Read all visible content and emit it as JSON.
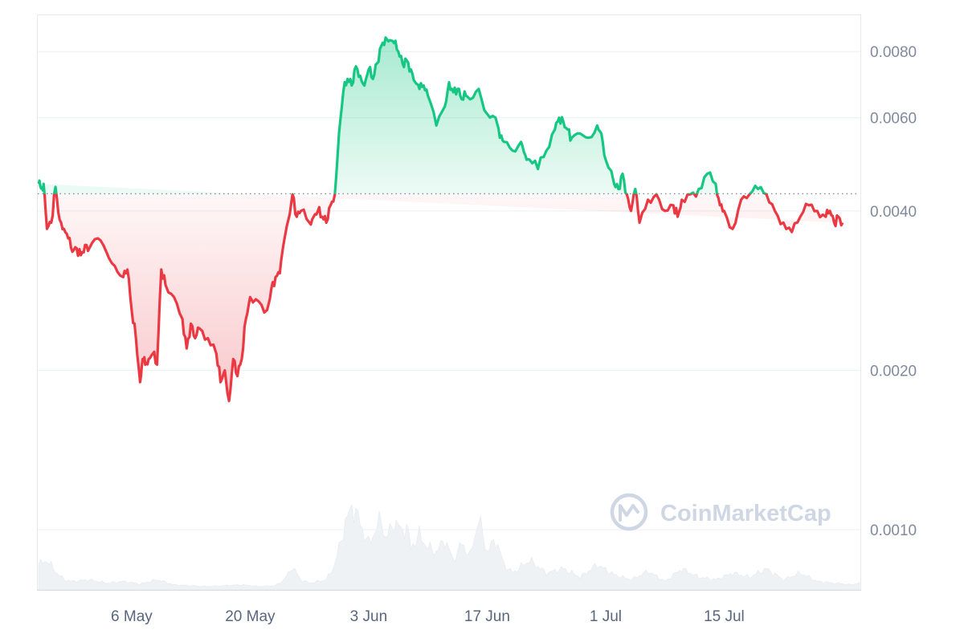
{
  "chart_data": {
    "type": "area",
    "y_scale": "log",
    "ylim": [
      0.00077,
      0.0094
    ],
    "baseline": 0.00431,
    "colors": {
      "above": "#16c784",
      "below": "#ea3943",
      "grid": "#eff2f5",
      "baseline": "#808a9d",
      "volume": "#eff2f5"
    },
    "y_ticks": [
      {
        "label": "0.0080",
        "value": 0.008
      },
      {
        "label": "0.0060",
        "value": 0.006
      },
      {
        "label": "0.0040",
        "value": 0.004
      },
      {
        "label": "0.0020",
        "value": 0.002
      },
      {
        "label": "0.0010",
        "value": 0.001
      }
    ],
    "x_ticks": [
      {
        "label": "6 May",
        "day": 11
      },
      {
        "label": "20 May",
        "day": 25
      },
      {
        "label": "3 Jun",
        "day": 39
      },
      {
        "label": "17 Jun",
        "day": 53
      },
      {
        "label": "1 Jul",
        "day": 67
      },
      {
        "label": "15 Jul",
        "day": 81
      }
    ],
    "x_range": [
      0,
      97
    ],
    "price": {
      "day": [
        0,
        0.3,
        0.6,
        1,
        1.5,
        2,
        2.5,
        3,
        3.5,
        4,
        4.5,
        5,
        5.5,
        6,
        7,
        8,
        9,
        10,
        10.5,
        11,
        11.5,
        12,
        12.3,
        12.6,
        13,
        13.5,
        14,
        14.5,
        15,
        16,
        17,
        17.5,
        18,
        18.5,
        19,
        20,
        21,
        21.5,
        22,
        22.5,
        23,
        23.5,
        24,
        24.5,
        25,
        26,
        27,
        27.5,
        28,
        28.5,
        29,
        30,
        30.5,
        31,
        32,
        32.5,
        33,
        33.5,
        34,
        34.5,
        35,
        35.5,
        36,
        36.5,
        37,
        37.5,
        38,
        38.5,
        39,
        39.5,
        40,
        40.5,
        41,
        41.5,
        42,
        42.5,
        43,
        43.5,
        44,
        44.5,
        45,
        45.5,
        46,
        47,
        48,
        48.5,
        49,
        49.5,
        50,
        50.5,
        51,
        52,
        53,
        54,
        54.5,
        55,
        56,
        57,
        57.5,
        58,
        59,
        60,
        61,
        61.5,
        62,
        62.5,
        63,
        64,
        65,
        66,
        66.5,
        67,
        68,
        68.5,
        69,
        69.5,
        70,
        70.5,
        71,
        72,
        73,
        74,
        75,
        75.5,
        76,
        77,
        78,
        79,
        80,
        80.5,
        81,
        82,
        83,
        84,
        85,
        86,
        87,
        88,
        89,
        90,
        91,
        92,
        93,
        93.5,
        94,
        94.5,
        95,
        96,
        97
      ],
      "value": [
        0.0045,
        0.00441,
        0.0045,
        0.0037,
        0.0038,
        0.00444,
        0.00385,
        0.0037,
        0.00355,
        0.00335,
        0.0034,
        0.0033,
        0.00345,
        0.0034,
        0.00355,
        0.00335,
        0.00315,
        0.003,
        0.0031,
        0.0026,
        0.0023,
        0.0019,
        0.0021,
        0.00205,
        0.0021,
        0.00215,
        0.00205,
        0.0031,
        0.0029,
        0.00275,
        0.0025,
        0.0022,
        0.00245,
        0.0023,
        0.0024,
        0.0023,
        0.00215,
        0.0019,
        0.002,
        0.00175,
        0.0021,
        0.00195,
        0.0021,
        0.0025,
        0.00275,
        0.0027,
        0.0026,
        0.00285,
        0.003,
        0.00305,
        0.0035,
        0.0043,
        0.0039,
        0.004,
        0.0038,
        0.0039,
        0.004,
        0.0039,
        0.0038,
        0.0041,
        0.0043,
        0.0056,
        0.0067,
        0.0071,
        0.0069,
        0.0075,
        0.0072,
        0.0069,
        0.0074,
        0.0071,
        0.0076,
        0.0082,
        0.0085,
        0.0084,
        0.0083,
        0.008,
        0.0076,
        0.0077,
        0.0074,
        0.007,
        0.0068,
        0.0069,
        0.0066,
        0.0058,
        0.0063,
        0.007,
        0.0067,
        0.0068,
        0.0065,
        0.0066,
        0.0065,
        0.0068,
        0.0061,
        0.006,
        0.0055,
        0.0054,
        0.0052,
        0.0054,
        0.0051,
        0.005,
        0.0048,
        0.0052,
        0.0057,
        0.006,
        0.0059,
        0.0057,
        0.0055,
        0.0056,
        0.0055,
        0.0058,
        0.0056,
        0.005,
        0.0045,
        0.0044,
        0.0047,
        0.0043,
        0.004,
        0.0044,
        0.0038,
        0.0042,
        0.0043,
        0.004,
        0.0041,
        0.0039,
        0.0042,
        0.0043,
        0.0044,
        0.0047,
        0.0045,
        0.0041,
        0.004,
        0.0037,
        0.0042,
        0.0043,
        0.0044,
        0.0043,
        0.004,
        0.0038,
        0.00365,
        0.0039,
        0.0041,
        0.004,
        0.0039,
        0.004,
        0.0038,
        0.0039,
        0.0038
      ]
    },
    "volume": {
      "day": [
        0,
        1,
        2,
        3,
        4,
        6,
        8,
        10,
        12,
        14,
        16,
        18,
        20,
        22,
        24,
        26,
        28,
        29,
        30,
        31,
        32,
        33,
        34,
        35,
        36,
        36.5,
        37,
        37.5,
        38,
        38.5,
        39,
        40,
        40.5,
        41,
        42,
        43,
        43.5,
        44,
        45,
        46,
        47,
        48,
        49,
        50,
        51,
        52,
        53,
        54,
        55,
        56,
        58,
        60,
        62,
        64,
        66,
        68,
        70,
        72,
        74,
        76,
        78,
        80,
        82,
        84,
        86,
        88,
        90,
        92,
        94,
        96,
        97
      ],
      "level": [
        0.3,
        0.35,
        0.22,
        0.12,
        0.1,
        0.12,
        0.08,
        0.1,
        0.07,
        0.12,
        0.06,
        0.05,
        0.04,
        0.05,
        0.06,
        0.04,
        0.05,
        0.12,
        0.27,
        0.12,
        0.08,
        0.1,
        0.12,
        0.3,
        0.7,
        0.85,
        1.0,
        0.9,
        0.8,
        0.65,
        0.55,
        0.75,
        0.85,
        0.6,
        0.8,
        0.7,
        0.75,
        0.5,
        0.65,
        0.5,
        0.45,
        0.6,
        0.35,
        0.55,
        0.4,
        0.85,
        0.45,
        0.6,
        0.3,
        0.2,
        0.35,
        0.2,
        0.25,
        0.15,
        0.3,
        0.18,
        0.12,
        0.22,
        0.1,
        0.25,
        0.15,
        0.12,
        0.2,
        0.15,
        0.25,
        0.12,
        0.2,
        0.1,
        0.08,
        0.06,
        0.08
      ]
    }
  },
  "watermark": {
    "text": "CoinMarketCap"
  }
}
